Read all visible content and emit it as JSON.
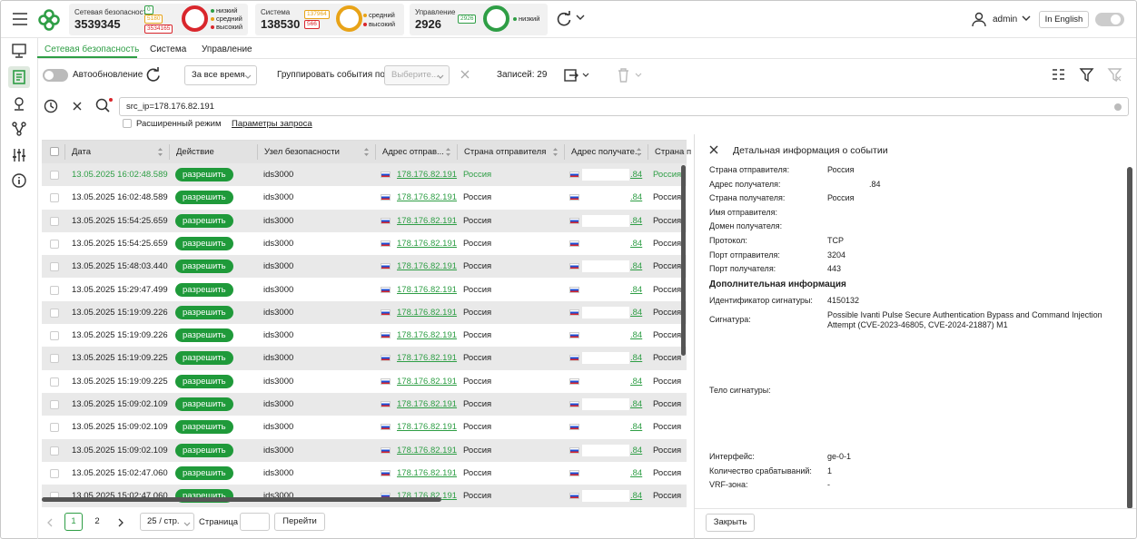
{
  "header": {
    "stats": [
      {
        "label": "Сетевая безопасность",
        "value": "3539345",
        "badges": [
          {
            "text": "0",
            "color": "#2e9e45"
          },
          {
            "text": "5180",
            "color": "#e8a317"
          },
          {
            "text": "3534165",
            "color": "#d9262c"
          }
        ],
        "ring": "#d9262c",
        "legend": [
          {
            "text": "низкий",
            "color": "#2e9e45"
          },
          {
            "text": "средний",
            "color": "#e8a317"
          },
          {
            "text": "высокий",
            "color": "#d9262c"
          }
        ]
      },
      {
        "label": "Система",
        "value": "138530",
        "badges": [
          {
            "text": "137964",
            "color": "#e8a317"
          },
          {
            "text": "566",
            "color": "#d9262c"
          }
        ],
        "ring": "#e8a317",
        "legend": [
          {
            "text": "средний",
            "color": "#e8a317"
          },
          {
            "text": "высокий",
            "color": "#d9262c"
          }
        ]
      },
      {
        "label": "Управление",
        "value": "2926",
        "badges": [
          {
            "text": "2926",
            "color": "#2e9e45"
          }
        ],
        "ring": "#2e9e45",
        "legend": [
          {
            "text": "низкий",
            "color": "#2e9e45"
          }
        ]
      }
    ],
    "user": "admin",
    "language": "In English"
  },
  "tabs": [
    "Сетевая безопасность",
    "Система",
    "Управление"
  ],
  "toolbar": {
    "autoupdate": "Автообновление",
    "period": "За все время",
    "group_label": "Группировать события по",
    "group_select": "Выберите...",
    "records": "Записей: 29"
  },
  "search": {
    "query": "src_ip=178.176.82.191",
    "advanced": "Расширенный режим",
    "params": "Параметры запроса"
  },
  "table": {
    "columns": [
      "Дата",
      "Действие",
      "Узел безопасности",
      "Адрес отправ...",
      "Страна отправителя",
      "Адрес получате...",
      "Страна п"
    ],
    "rows": [
      [
        "13.05.2025 16:02:48.589",
        "разрешить",
        "ids3000",
        "178.176.82.191",
        "Россия",
        ".84",
        "Россия"
      ],
      [
        "13.05.2025 16:02:48.589",
        "разрешить",
        "ids3000",
        "178.176.82.191",
        "Россия",
        ".84",
        "Россия"
      ],
      [
        "13.05.2025 15:54:25.659",
        "разрешить",
        "ids3000",
        "178.176.82.191",
        "Россия",
        ".84",
        "Россия"
      ],
      [
        "13.05.2025 15:54:25.659",
        "разрешить",
        "ids3000",
        "178.176.82.191",
        "Россия",
        ".84",
        "Россия"
      ],
      [
        "13.05.2025 15:48:03.440",
        "разрешить",
        "ids3000",
        "178.176.82.191",
        "Россия",
        ".84",
        "Россия"
      ],
      [
        "13.05.2025 15:29:47.499",
        "разрешить",
        "ids3000",
        "178.176.82.191",
        "Россия",
        ".84",
        "Россия"
      ],
      [
        "13.05.2025 15:19:09.226",
        "разрешить",
        "ids3000",
        "178.176.82.191",
        "Россия",
        ".84",
        "Россия"
      ],
      [
        "13.05.2025 15:19:09.226",
        "разрешить",
        "ids3000",
        "178.176.82.191",
        "Россия",
        ".84",
        "Россия"
      ],
      [
        "13.05.2025 15:19:09.225",
        "разрешить",
        "ids3000",
        "178.176.82.191",
        "Россия",
        ".84",
        "Россия"
      ],
      [
        "13.05.2025 15:19:09.225",
        "разрешить",
        "ids3000",
        "178.176.82.191",
        "Россия",
        ".84",
        "Россия"
      ],
      [
        "13.05.2025 15:09:02.109",
        "разрешить",
        "ids3000",
        "178.176.82.191",
        "Россия",
        ".84",
        "Россия"
      ],
      [
        "13.05.2025 15:09:02.109",
        "разрешить",
        "ids3000",
        "178.176.82.191",
        "Россия",
        ".84",
        "Россия"
      ],
      [
        "13.05.2025 15:09:02.109",
        "разрешить",
        "ids3000",
        "178.176.82.191",
        "Россия",
        ".84",
        "Россия"
      ],
      [
        "13.05.2025 15:02:47.060",
        "разрешить",
        "ids3000",
        "178.176.82.191",
        "Россия",
        ".84",
        "Россия"
      ],
      [
        "13.05.2025 15:02:47.060",
        "разрешить",
        "ids3000",
        "178.176.82.191",
        "Россия",
        ".84",
        "Россия"
      ]
    ]
  },
  "pagination": {
    "pages": [
      "1",
      "2"
    ],
    "page_size": "25 / стр.",
    "page_label": "Страница",
    "go": "Перейти"
  },
  "detail": {
    "title": "Детальная информация о событии",
    "fields": [
      {
        "label": "Страна отправителя:",
        "value": "Россия"
      },
      {
        "label": "Адрес получателя:",
        "value": ".84"
      },
      {
        "label": "Страна получателя:",
        "value": "Россия"
      },
      {
        "label": "Имя отправителя:"
      },
      {
        "label": "Домен получателя:"
      },
      {
        "label": "Протокол:",
        "value": "TCP"
      },
      {
        "label": "Порт отправителя:",
        "value": "3204"
      },
      {
        "label": "Порт получателя:",
        "value": "443"
      }
    ],
    "extra_title": "Дополнительная информация",
    "extra_fields": [
      {
        "label": "Идентификатор сигнатуры:",
        "value": "4150132"
      },
      {
        "label": "Сигнатура:",
        "value": "Possible Ivanti Pulse Secure Authentication Bypass and Command Injection Attempt (CVE-2023-46805, CVE-2024-21887) M1"
      },
      {
        "label": "Тело сигнатуры:"
      },
      {
        "label": "Интерфейс:",
        "value": "ge-0-1"
      },
      {
        "label": "Количество срабатываний:",
        "value": "1"
      },
      {
        "label": "VRF-зона:",
        "value": "-"
      }
    ],
    "close": "Закрыть"
  }
}
